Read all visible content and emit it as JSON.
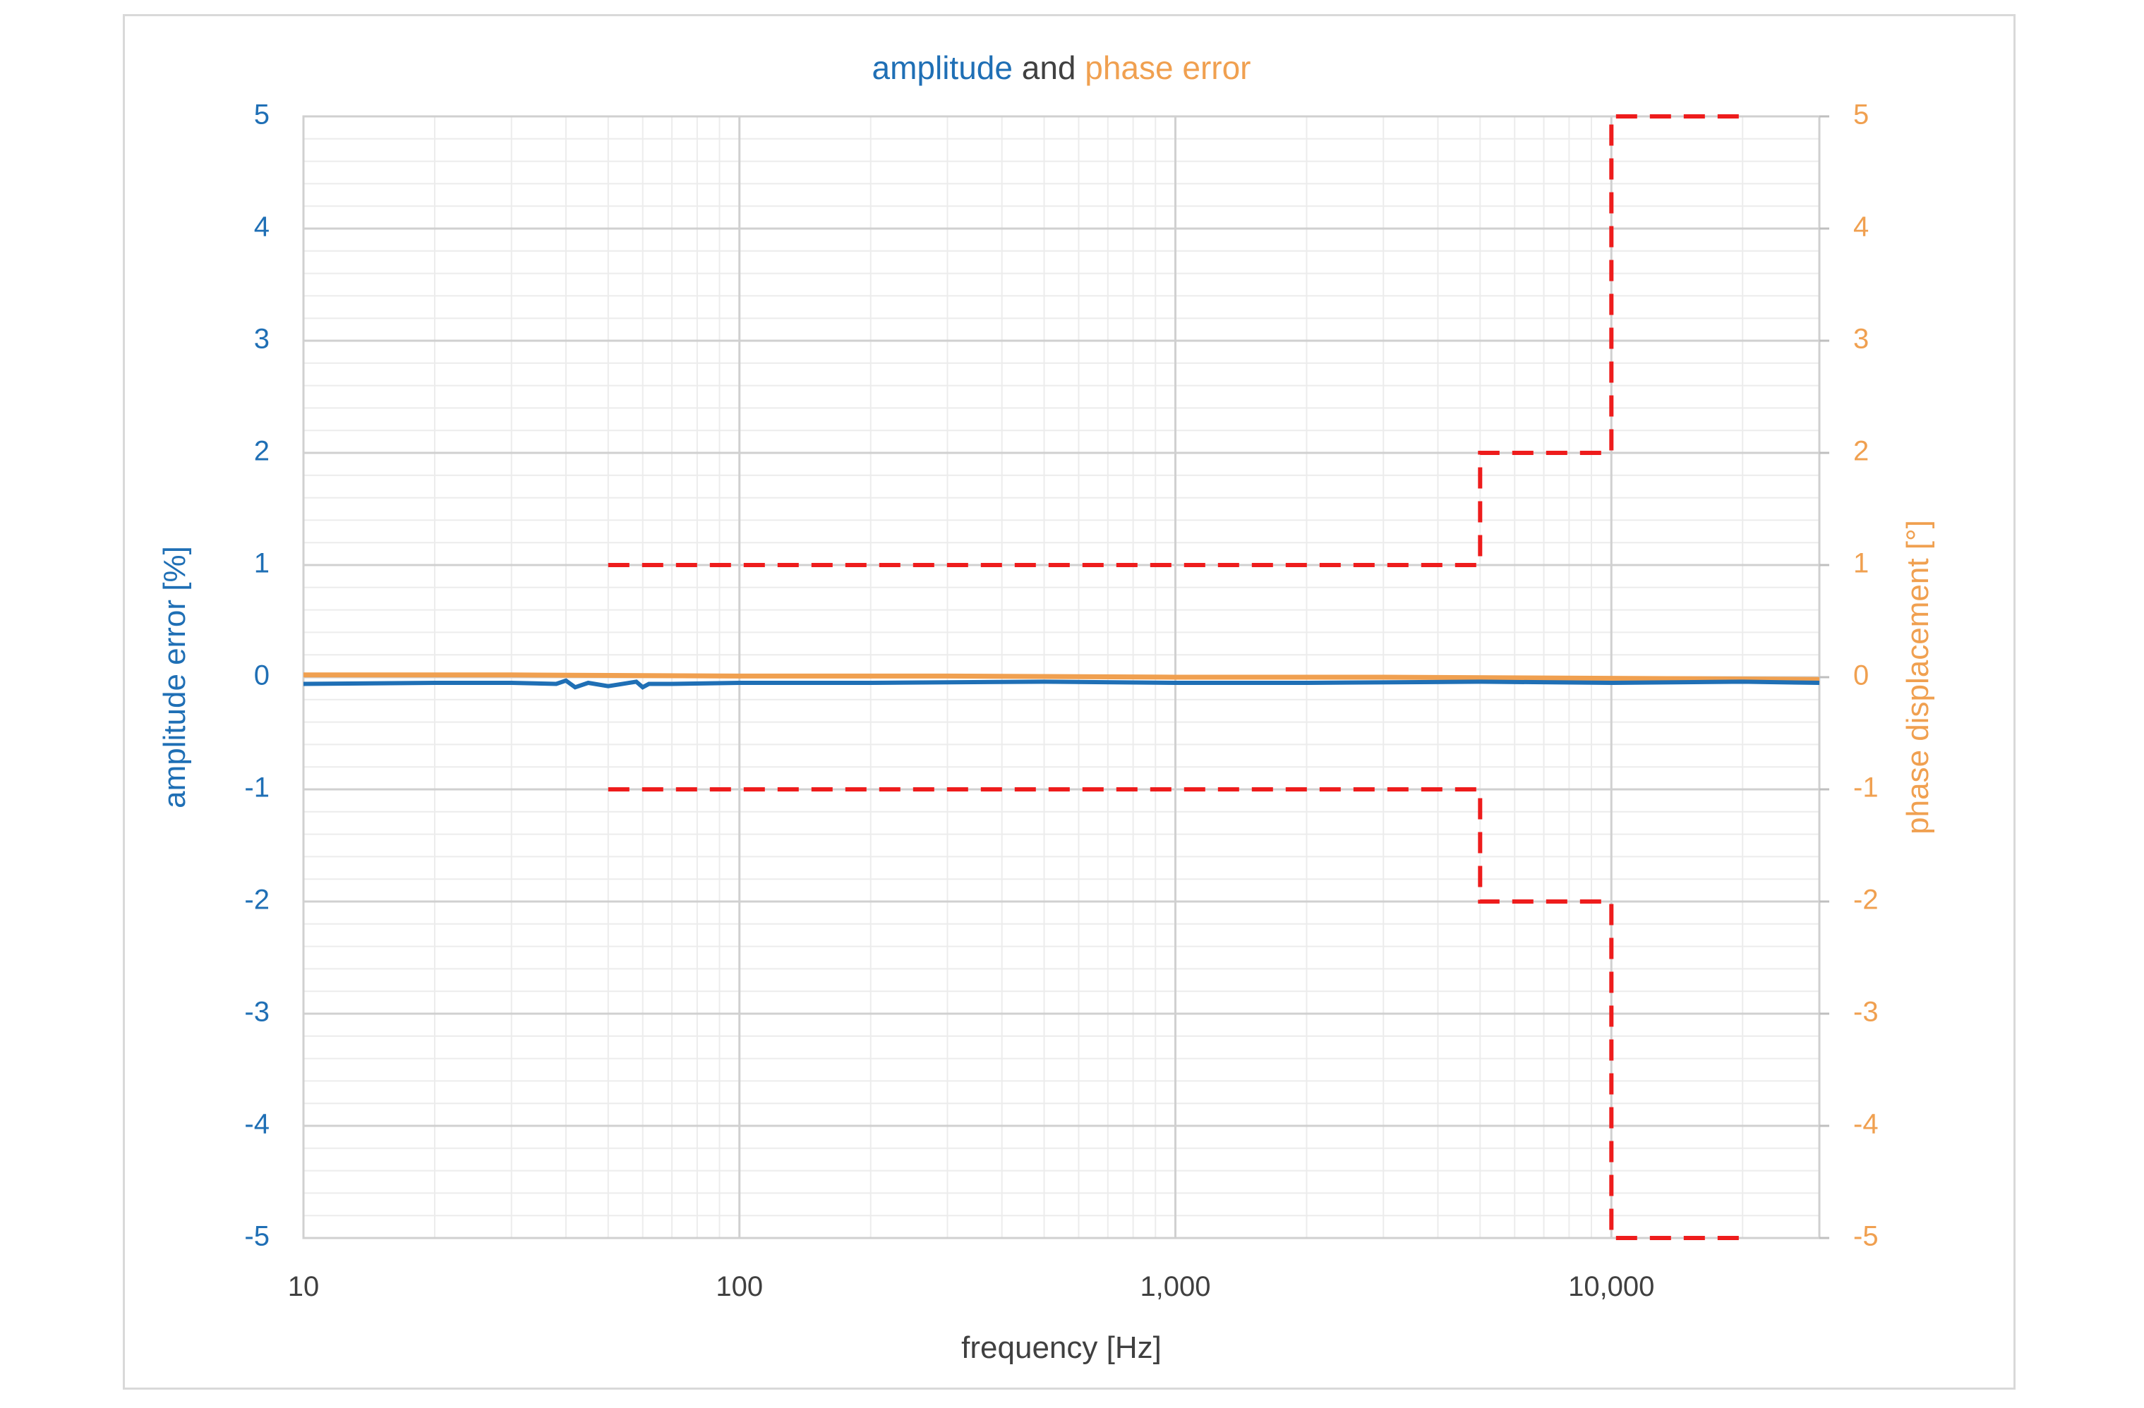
{
  "chart_data": {
    "type": "line",
    "title": {
      "part1": "amplitude",
      "part2": " and ",
      "part3": "phase error"
    },
    "xlabel": "frequency [Hz]",
    "ylabel_left": "amplitude error [%]",
    "ylabel_right": "phase displacement [°]",
    "x_scale": "log",
    "xlim": [
      10,
      30000
    ],
    "ylim_left": [
      -5,
      5
    ],
    "ylim_right": [
      -5,
      5
    ],
    "x_ticks": [
      10,
      100,
      1000,
      10000
    ],
    "x_tick_labels": [
      "10",
      "100",
      "1,000",
      "10,000"
    ],
    "y_ticks": [
      5,
      4,
      3,
      2,
      1,
      0,
      -1,
      -2,
      -3,
      -4,
      -5
    ],
    "y_tick_labels": [
      "5",
      "4",
      "3",
      "2",
      "1",
      "0",
      "-1",
      "-2",
      "-3",
      "-4",
      "-5"
    ],
    "grid": "on (major and minor)",
    "legend": "none",
    "colors": {
      "amplitude": "#1f6fb5",
      "phase": "#f0a050",
      "limits": "#ee1c1c",
      "title_middle": "#404040",
      "grid_major": "#d0d0d0",
      "grid_minor": "#ececec"
    },
    "series": [
      {
        "x": [
          10,
          20,
          30,
          38,
          40,
          42,
          45,
          50,
          58,
          60,
          62,
          70,
          100,
          200,
          500,
          1000,
          2000,
          5000,
          10000,
          20000,
          30000
        ],
        "y": [
          -0.06,
          -0.05,
          -0.05,
          -0.06,
          -0.03,
          -0.09,
          -0.05,
          -0.08,
          -0.04,
          -0.09,
          -0.06,
          -0.06,
          -0.05,
          -0.05,
          -0.04,
          -0.05,
          -0.05,
          -0.04,
          -0.05,
          -0.04,
          -0.05
        ]
      },
      {
        "x": [
          10,
          30,
          100,
          300,
          1000,
          3000,
          10000,
          30000
        ],
        "y": [
          0.02,
          0.02,
          0.01,
          0.01,
          0.0,
          0.0,
          -0.01,
          -0.02
        ]
      },
      {
        "style": "dashed",
        "x": [
          50,
          5000,
          5000,
          10000,
          10000,
          20000
        ],
        "y": [
          1,
          1,
          2,
          2,
          5,
          5
        ]
      },
      {
        "style": "dashed",
        "x": [
          50,
          5000,
          5000,
          10000,
          10000,
          20000
        ],
        "y": [
          -1,
          -1,
          -2,
          -2,
          -5,
          -5
        ]
      }
    ]
  }
}
